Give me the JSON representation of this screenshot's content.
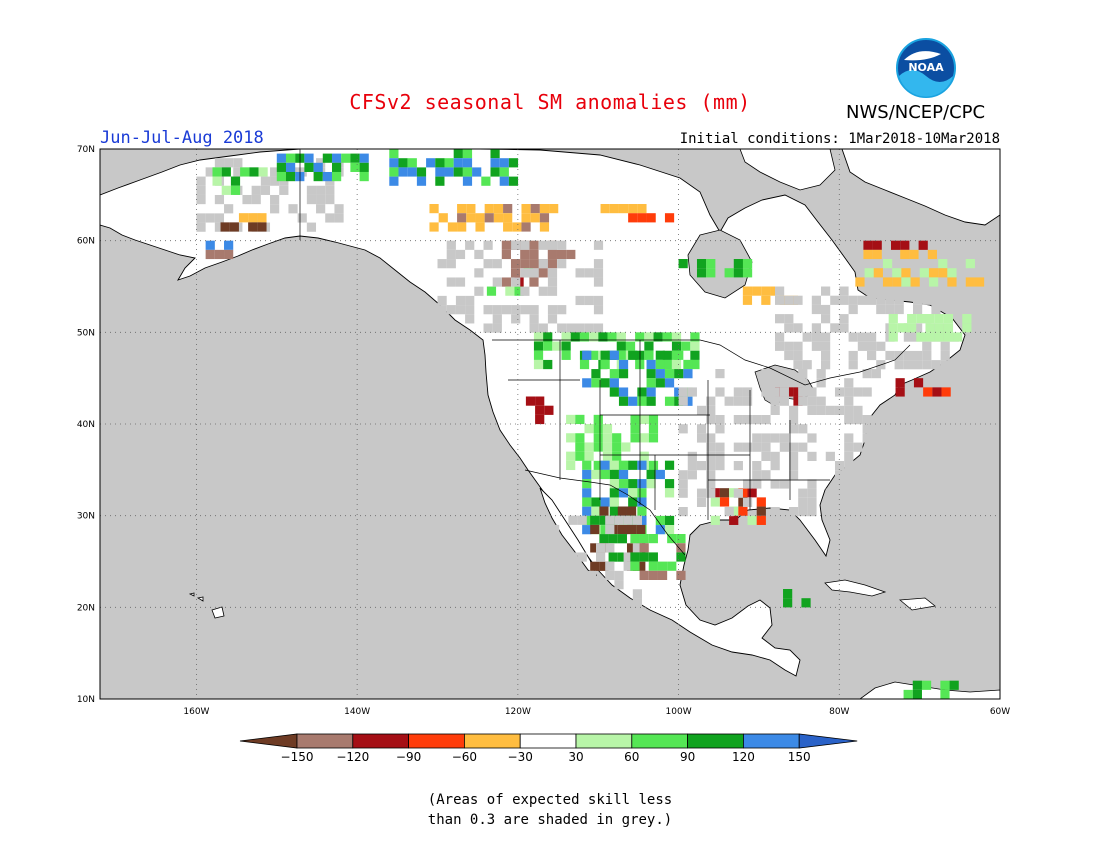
{
  "title": "CFSv2 seasonal SM anomalies (mm)",
  "organization": "NWS/NCEP/CPC",
  "logo_text": "NOAA",
  "period": "Jun-Jul-Aug 2018",
  "initial_conditions": "Initial conditions: 1Mar2018-10Mar2018",
  "map": {
    "lon_range": [
      -172,
      -60
    ],
    "lat_range": [
      10,
      70
    ],
    "lat_ticks": [
      "70N",
      "60N",
      "50N",
      "40N",
      "30N",
      "20N",
      "10N"
    ],
    "lon_ticks": [
      "160W",
      "140W",
      "120W",
      "100W",
      "80W",
      "60W"
    ]
  },
  "legend": {
    "labels": [
      "-150",
      "-120",
      "-90",
      "-60",
      "-30",
      "30",
      "60",
      "90",
      "120",
      "150"
    ],
    "colors": [
      "#6e3b24",
      "#a87a6e",
      "#a50f15",
      "#ff3c0a",
      "#ffbd40",
      "#ffffff",
      "#b8f5a8",
      "#55e655",
      "#11a31f",
      "#3c8ae6",
      "#2a62c8"
    ]
  },
  "note_line1": "(Areas of expected skill less",
  "note_line2": "than 0.3 are shaded in grey.)"
}
